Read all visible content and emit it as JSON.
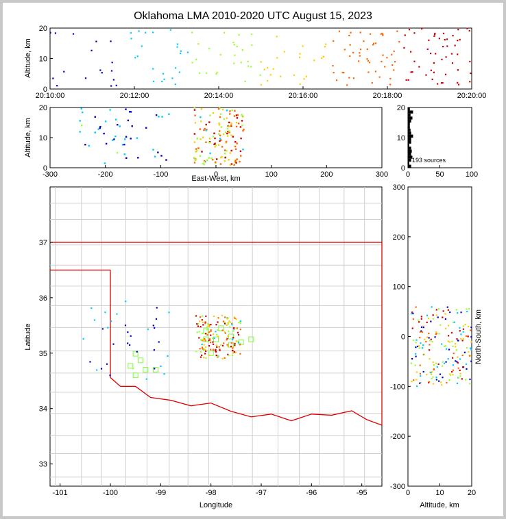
{
  "title": "Oklahoma LMA 2010-2020 UTC August 15, 2023",
  "colors": {
    "early": "#0000cc",
    "mid_early": "#00ccff",
    "mid": "#99ff33",
    "mid_late": "#ffcc00",
    "late": "#ff6600",
    "latest": "#cc0000",
    "border": "#e00000",
    "county": "#cfcfcf"
  },
  "chart_data": [
    {
      "id": "time-height",
      "type": "scatter",
      "xlabel": "",
      "ylabel": "Altitude, km",
      "xticks": [
        "20:10:00",
        "20:12:00",
        "20:14:00",
        "20:16:00",
        "20:18:00",
        "20:20:00"
      ],
      "xlim_min": [
        0,
        10
      ],
      "ylim": [
        0,
        20
      ],
      "yticks": [
        0,
        10,
        20
      ]
    },
    {
      "id": "ew-height",
      "type": "scatter",
      "xlabel": "East-West, km",
      "ylabel": "Altitude, km",
      "xlim": [
        -300,
        300
      ],
      "xticks": [
        -300,
        -200,
        -100,
        0,
        100,
        200,
        300
      ],
      "ylim": [
        0,
        20
      ],
      "yticks": [
        0,
        10,
        20
      ]
    },
    {
      "id": "histogram",
      "type": "bar",
      "xlim": [
        0,
        100
      ],
      "xticks": [
        0,
        50,
        100
      ],
      "ylim": [
        0,
        20
      ],
      "yticks": [
        0,
        10,
        20
      ],
      "annotation": "193 sources"
    },
    {
      "id": "plan-view",
      "type": "scatter",
      "xlabel": "Longitude",
      "ylabel": "Latitude",
      "xlim": [
        -101.2,
        -94.6
      ],
      "xticks": [
        -101,
        -100,
        -99,
        -98,
        -97,
        -96,
        -95
      ],
      "ylim": [
        32.6,
        38.0
      ],
      "yticks": [
        33,
        34,
        35,
        36,
        37
      ]
    },
    {
      "id": "ns-height",
      "type": "scatter",
      "xlabel": "Altitude, km",
      "ylabel": "North-South, km",
      "xlim": [
        0,
        20
      ],
      "xticks": [
        0,
        10,
        20
      ],
      "ylim": [
        -300,
        300
      ],
      "yticks": [
        -300,
        -200,
        -100,
        0,
        100,
        200,
        300
      ]
    }
  ],
  "stations": [
    [
      -99.6,
      34.77
    ],
    [
      -99.5,
      34.99
    ],
    [
      -99.4,
      34.87
    ],
    [
      -99.3,
      34.7
    ],
    [
      -99.5,
      34.6
    ],
    [
      -99.1,
      34.7
    ],
    [
      -98.1,
      35.25
    ],
    [
      -97.9,
      35.25
    ],
    [
      -98.0,
      35.0
    ],
    [
      -97.8,
      35.45
    ],
    [
      -97.6,
      35.3
    ],
    [
      -97.4,
      35.2
    ],
    [
      -97.2,
      35.25
    ],
    [
      -97.6,
      35.15
    ],
    [
      -98.1,
      35.4
    ]
  ]
}
